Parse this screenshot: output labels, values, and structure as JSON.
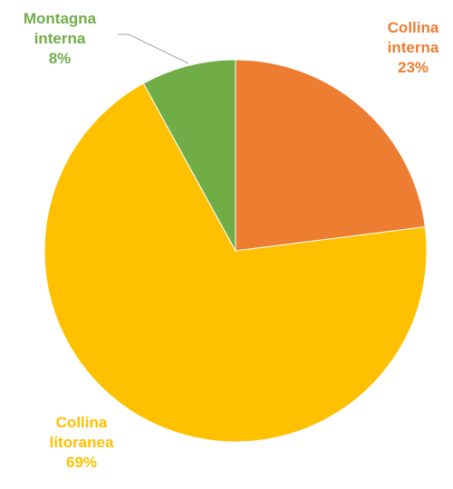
{
  "chart_data": {
    "type": "pie",
    "categories": [
      "Collina interna",
      "Collina litoranea",
      "Montagna interna"
    ],
    "values": [
      23,
      69,
      8
    ],
    "colors": [
      "#ED7D31",
      "#FFC000",
      "#70AD47"
    ],
    "labels": [
      {
        "lines": [
          "Collina",
          "interna"
        ],
        "pct": "23%"
      },
      {
        "lines": [
          "Collina",
          "litoranea"
        ],
        "pct": "69%"
      },
      {
        "lines": [
          "Montagna",
          "interna"
        ],
        "pct": "8%"
      }
    ],
    "start_angle_deg": 0,
    "direction": "clockwise"
  }
}
